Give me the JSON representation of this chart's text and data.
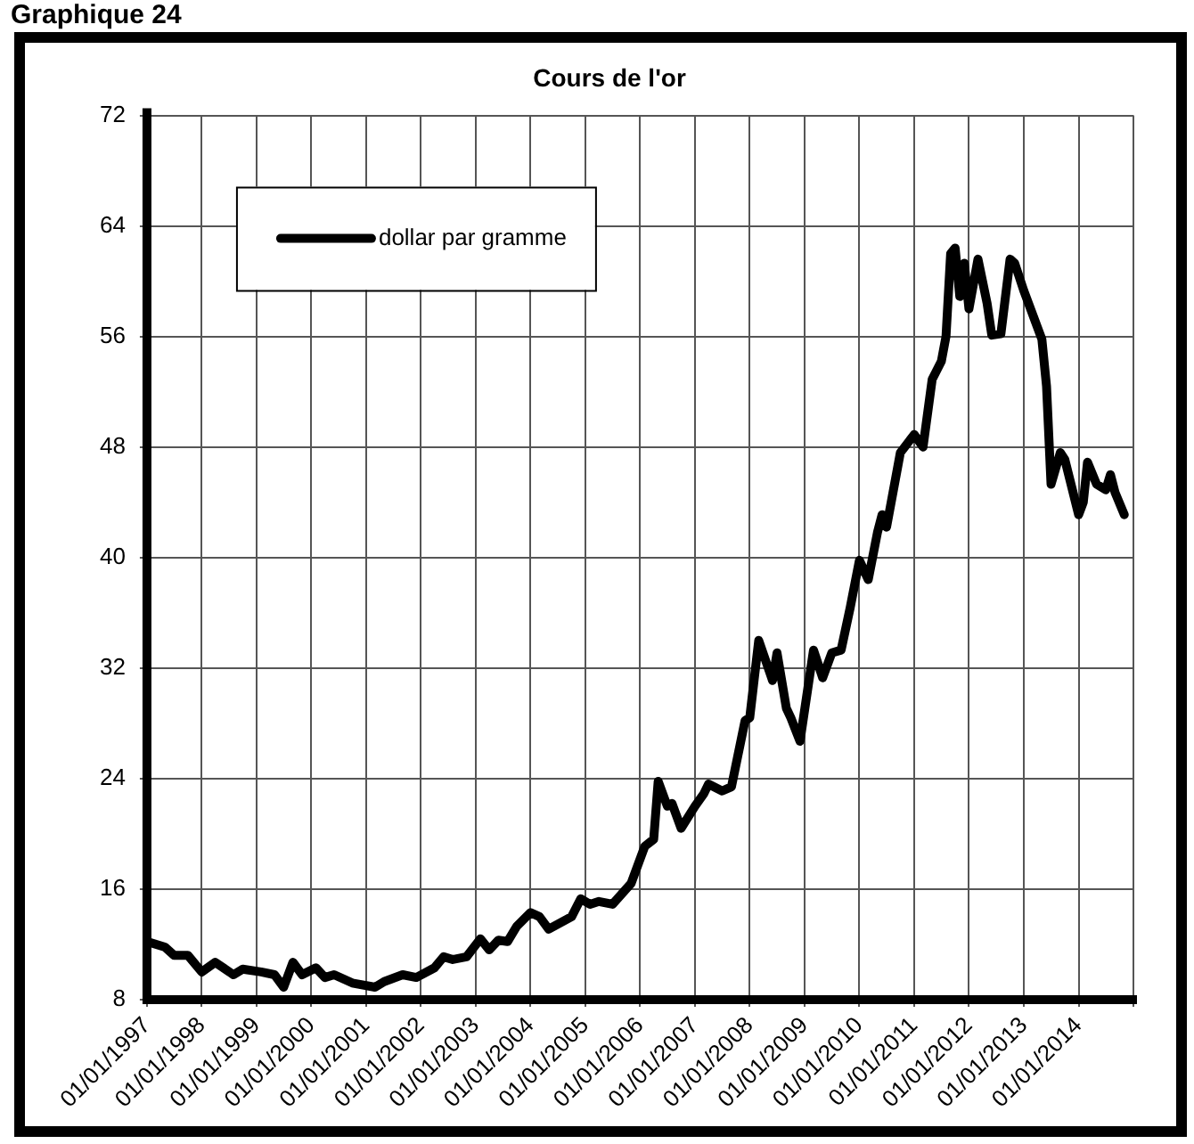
{
  "chart_data": {
    "type": "line",
    "title": "Cours de l'or",
    "annotations": [
      "Graphique 24"
    ],
    "x": [
      "1997-01",
      "1997-05",
      "1997-07",
      "1997-10",
      "1998-01",
      "1998-04",
      "1998-08",
      "1998-10",
      "1999-02",
      "1999-05",
      "1999-07",
      "1999-09",
      "1999-11",
      "2000-02",
      "2000-04",
      "2000-06",
      "2000-10",
      "2001-03",
      "2001-05",
      "2001-09",
      "2001-12",
      "2002-04",
      "2002-06",
      "2002-08",
      "2002-11",
      "2003-02",
      "2003-04",
      "2003-06",
      "2003-08",
      "2003-10",
      "2004-01",
      "2004-03",
      "2004-05",
      "2004-10",
      "2004-12",
      "2005-02",
      "2005-04",
      "2005-07",
      "2005-11",
      "2006-02",
      "2006-04",
      "2006-05",
      "2006-07",
      "2006-08",
      "2006-10",
      "2007-01",
      "2007-03",
      "2007-04",
      "2007-07",
      "2007-09",
      "2007-12",
      "2008-01",
      "2008-03",
      "2008-06",
      "2008-07",
      "2008-09",
      "2008-10",
      "2008-12",
      "2009-03",
      "2009-05",
      "2009-07",
      "2009-09",
      "2009-11",
      "2010-01",
      "2010-03",
      "2010-05",
      "2010-06",
      "2010-07",
      "2010-10",
      "2011-01",
      "2011-03",
      "2011-05",
      "2011-07",
      "2011-08",
      "2011-09",
      "2011-10",
      "2011-11",
      "2011-12",
      "2012-01",
      "2012-03",
      "2012-05",
      "2012-06",
      "2012-08",
      "2012-10",
      "2012-11",
      "2013-01",
      "2013-02",
      "2013-05",
      "2013-06",
      "2013-07",
      "2013-09",
      "2013-10",
      "2014-01",
      "2014-02",
      "2014-03",
      "2014-05",
      "2014-07",
      "2014-08",
      "2014-09",
      "2014-11"
    ],
    "series": [
      {
        "name": "dollar par gramme",
        "color": "#000000",
        "values": [
          12.2,
          11.8,
          11.2,
          11.2,
          10.0,
          10.7,
          9.8,
          10.2,
          10.0,
          9.8,
          8.9,
          10.7,
          9.8,
          10.3,
          9.6,
          9.8,
          9.2,
          8.9,
          9.3,
          9.8,
          9.6,
          10.3,
          11.1,
          10.9,
          11.1,
          12.4,
          11.6,
          12.3,
          12.2,
          13.3,
          14.3,
          14.0,
          13.1,
          14.0,
          15.3,
          14.9,
          15.1,
          14.9,
          16.4,
          19.1,
          19.6,
          23.8,
          22.0,
          22.2,
          20.4,
          22.0,
          22.9,
          23.6,
          23.1,
          23.4,
          28.2,
          28.4,
          34.0,
          31.1,
          33.1,
          29.1,
          28.4,
          26.7,
          33.3,
          31.3,
          33.1,
          33.3,
          36.4,
          39.8,
          38.4,
          41.8,
          43.1,
          42.2,
          47.6,
          48.9,
          48.0,
          52.9,
          54.2,
          56.0,
          62.0,
          62.4,
          58.9,
          61.3,
          58.0,
          61.6,
          58.4,
          56.1,
          56.2,
          61.6,
          61.3,
          59.3,
          58.4,
          55.8,
          52.4,
          45.3,
          47.6,
          47.1,
          43.1,
          44.0,
          46.9,
          45.3,
          44.9,
          46.0,
          44.7,
          43.1
        ]
      }
    ],
    "xlim": [
      "1997-01-01",
      "2015-01-01"
    ],
    "xticks": [
      {
        "value": "1997-01-01",
        "label": "01/01/1997"
      },
      {
        "value": "1998-01-01",
        "label": "01/01/1998"
      },
      {
        "value": "1999-01-01",
        "label": "01/01/1999"
      },
      {
        "value": "2000-01-01",
        "label": "01/01/2000"
      },
      {
        "value": "2001-01-01",
        "label": "01/01/2001"
      },
      {
        "value": "2002-01-01",
        "label": "01/01/2002"
      },
      {
        "value": "2003-01-01",
        "label": "01/01/2003"
      },
      {
        "value": "2004-01-01",
        "label": "01/01/2004"
      },
      {
        "value": "2005-01-01",
        "label": "01/01/2005"
      },
      {
        "value": "2006-01-01",
        "label": "01/01/2006"
      },
      {
        "value": "2007-01-01",
        "label": "01/01/2007"
      },
      {
        "value": "2008-01-01",
        "label": "01/01/2008"
      },
      {
        "value": "2009-01-01",
        "label": "01/01/2009"
      },
      {
        "value": "2010-01-01",
        "label": "01/01/2010"
      },
      {
        "value": "2011-01-01",
        "label": "01/01/2011"
      },
      {
        "value": "2012-01-01",
        "label": "01/01/2012"
      },
      {
        "value": "2013-01-01",
        "label": "01/01/2013"
      },
      {
        "value": "2014-01-01",
        "label": "01/01/2014"
      },
      {
        "value": "2015-01-01",
        "label": null
      }
    ],
    "ylim": [
      8,
      72
    ],
    "yticks": [
      8,
      16,
      24,
      32,
      40,
      48,
      56,
      64,
      72
    ],
    "grid": true,
    "legend": "top left",
    "marker": "none",
    "line_style": "solid"
  }
}
